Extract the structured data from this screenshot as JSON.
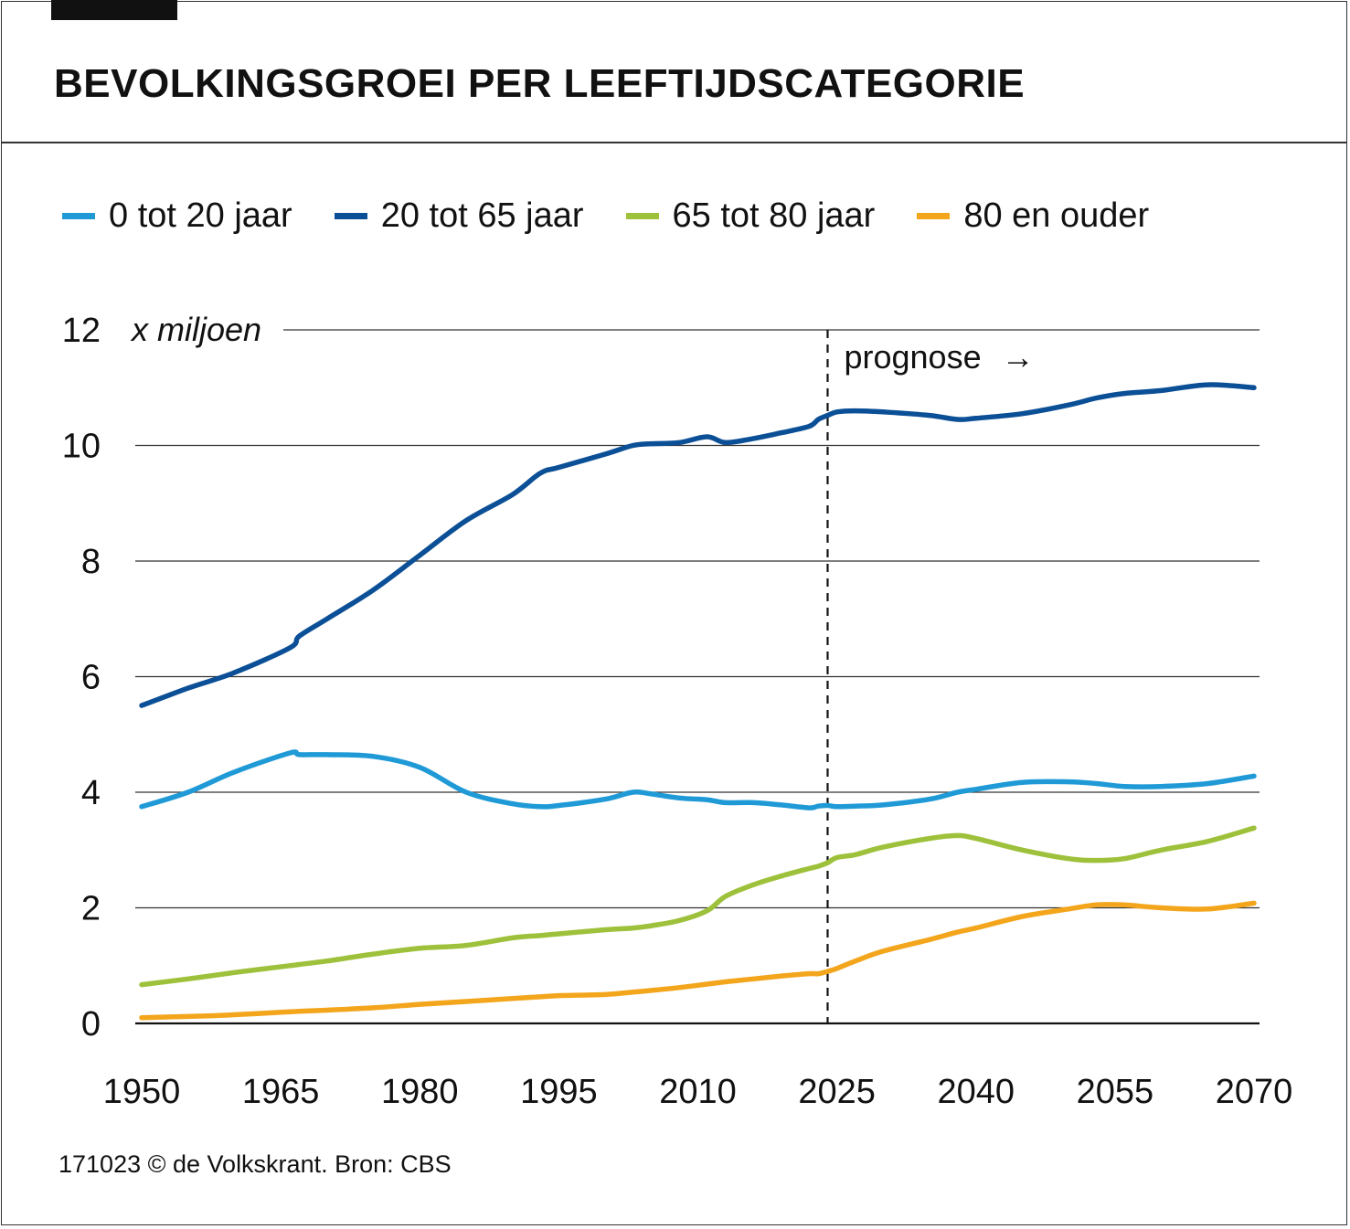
{
  "title": "BEVOLKINGSGROEI PER LEEFTIJDSCATEGORIE",
  "footer": "171023 © de Volkskrant. Bron: CBS",
  "colors": {
    "0_20": "#1f9ad6",
    "20_65": "#0b4f96",
    "65_80": "#9ec13b",
    "80_plus": "#f3a51c"
  },
  "chart_data": {
    "type": "line",
    "title": "BEVOLKINGSGROEI PER LEEFTIJDSCATEGORIE",
    "ylabel": "x miljoen",
    "xlabel": "",
    "ylim": [
      0,
      12
    ],
    "xlim": [
      1950,
      2070
    ],
    "yticks": [
      "0",
      "2",
      "4",
      "6",
      "8",
      "10",
      "12"
    ],
    "xticks": [
      "1950",
      "1965",
      "1980",
      "1995",
      "2010",
      "2025",
      "2040",
      "2055",
      "2070"
    ],
    "annotation": {
      "label": "prognose",
      "arrow": "→",
      "x": 2024
    },
    "x": [
      1950,
      1955,
      1960,
      1966,
      1967,
      1970,
      1975,
      1980,
      1985,
      1990,
      1993,
      1995,
      2000,
      2003,
      2005,
      2008,
      2011,
      2013,
      2016,
      2019,
      2022,
      2023,
      2024,
      2025,
      2027,
      2030,
      2035,
      2038,
      2040,
      2045,
      2050,
      2053,
      2056,
      2060,
      2065,
      2070
    ],
    "series": [
      {
        "name": "0 tot 20 jaar",
        "color_key": "0_20",
        "values": [
          3.75,
          4.0,
          4.35,
          4.68,
          4.65,
          4.65,
          4.62,
          4.43,
          4.0,
          3.8,
          3.75,
          3.77,
          3.88,
          4.0,
          3.97,
          3.9,
          3.87,
          3.82,
          3.82,
          3.78,
          3.73,
          3.76,
          3.77,
          3.75,
          3.76,
          3.78,
          3.88,
          4.0,
          4.05,
          4.17,
          4.18,
          4.15,
          4.1,
          4.1,
          4.15,
          4.28
        ]
      },
      {
        "name": "20 tot 65 jaar",
        "color_key": "20_65",
        "values": [
          5.5,
          5.8,
          6.07,
          6.5,
          6.7,
          7.0,
          7.5,
          8.1,
          8.7,
          9.15,
          9.52,
          9.62,
          9.85,
          10.0,
          10.03,
          10.05,
          10.15,
          10.05,
          10.12,
          10.22,
          10.33,
          10.45,
          10.52,
          10.58,
          10.6,
          10.58,
          10.52,
          10.45,
          10.47,
          10.55,
          10.7,
          10.82,
          10.9,
          10.95,
          11.05,
          11.0
        ]
      },
      {
        "name": "65 tot 80 jaar",
        "color_key": "65_80",
        "values": [
          0.67,
          0.77,
          0.88,
          1.0,
          1.02,
          1.08,
          1.2,
          1.3,
          1.35,
          1.48,
          1.52,
          1.55,
          1.62,
          1.65,
          1.69,
          1.78,
          1.95,
          2.2,
          2.4,
          2.55,
          2.68,
          2.72,
          2.78,
          2.87,
          2.92,
          3.05,
          3.2,
          3.25,
          3.2,
          3.0,
          2.85,
          2.82,
          2.85,
          3.0,
          3.15,
          3.38
        ]
      },
      {
        "name": "80 en ouder",
        "color_key": "80_plus",
        "values": [
          0.1,
          0.12,
          0.15,
          0.2,
          0.21,
          0.23,
          0.27,
          0.33,
          0.38,
          0.43,
          0.46,
          0.48,
          0.5,
          0.54,
          0.57,
          0.62,
          0.68,
          0.72,
          0.77,
          0.82,
          0.86,
          0.86,
          0.9,
          0.95,
          1.08,
          1.25,
          1.45,
          1.58,
          1.65,
          1.85,
          1.98,
          2.05,
          2.05,
          2.0,
          1.98,
          2.08
        ]
      }
    ]
  }
}
